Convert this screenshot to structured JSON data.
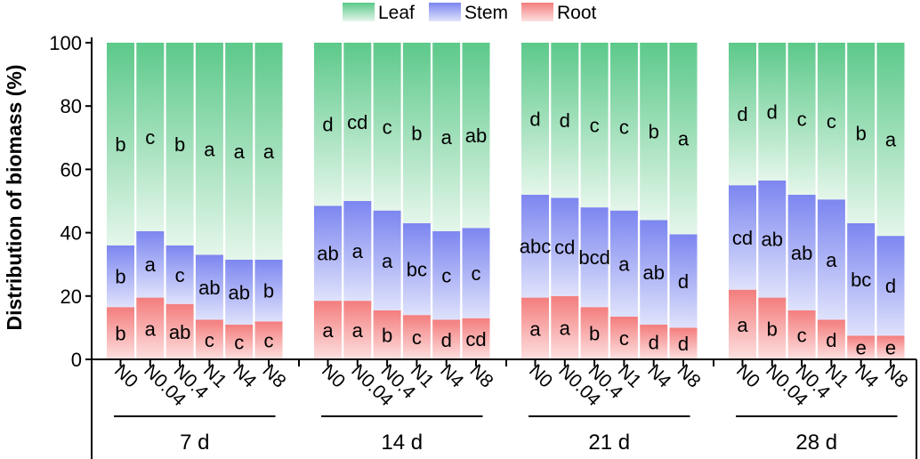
{
  "chart_data": {
    "type": "bar",
    "stacked": true,
    "ylabel": "Distribution of biomass (%)",
    "ylim": [
      0,
      100
    ],
    "yticks": [
      "0",
      "20",
      "40",
      "60",
      "80",
      "100"
    ],
    "legend_position": "top-center",
    "series": [
      {
        "name": "Leaf",
        "color": "#5cc98a",
        "color_light": "#e4f6ea"
      },
      {
        "name": "Stem",
        "color": "#7c86f0",
        "color_light": "#dfe2fb"
      },
      {
        "name": "Root",
        "color": "#f47d7d",
        "color_light": "#fde0e0"
      }
    ],
    "groups": [
      {
        "label": "7 d",
        "bars": [
          {
            "category": "N0",
            "root": 16.5,
            "stem": 19.5,
            "leaf": 64.0,
            "root_letter": "b",
            "stem_letter": "b",
            "leaf_letter": "b"
          },
          {
            "category": "N0.04",
            "root": 19.5,
            "stem": 21.0,
            "leaf": 59.5,
            "root_letter": "a",
            "stem_letter": "a",
            "leaf_letter": "c"
          },
          {
            "category": "N0.4",
            "root": 17.5,
            "stem": 18.5,
            "leaf": 64.0,
            "root_letter": "ab",
            "stem_letter": "c",
            "leaf_letter": "b"
          },
          {
            "category": "N1",
            "root": 12.5,
            "stem": 20.5,
            "leaf": 67.0,
            "root_letter": "c",
            "stem_letter": "ab",
            "leaf_letter": "a"
          },
          {
            "category": "N4",
            "root": 11.0,
            "stem": 20.5,
            "leaf": 68.5,
            "root_letter": "c",
            "stem_letter": "ab",
            "leaf_letter": "a"
          },
          {
            "category": "N8",
            "root": 12.0,
            "stem": 19.5,
            "leaf": 68.5,
            "root_letter": "c",
            "stem_letter": "b",
            "leaf_letter": "a"
          }
        ]
      },
      {
        "label": "14 d",
        "bars": [
          {
            "category": "N0",
            "root": 18.5,
            "stem": 30.0,
            "leaf": 51.5,
            "root_letter": "a",
            "stem_letter": "ab",
            "leaf_letter": "d"
          },
          {
            "category": "N0.04",
            "root": 18.5,
            "stem": 31.5,
            "leaf": 50.0,
            "root_letter": "a",
            "stem_letter": "a",
            "leaf_letter": "cd"
          },
          {
            "category": "N0.4",
            "root": 15.5,
            "stem": 31.5,
            "leaf": 53.0,
            "root_letter": "b",
            "stem_letter": "a",
            "leaf_letter": "c"
          },
          {
            "category": "N1",
            "root": 14.0,
            "stem": 29.0,
            "leaf": 57.0,
            "root_letter": "c",
            "stem_letter": "bc",
            "leaf_letter": "b"
          },
          {
            "category": "N4",
            "root": 12.5,
            "stem": 28.0,
            "leaf": 59.5,
            "root_letter": "d",
            "stem_letter": "c",
            "leaf_letter": "a"
          },
          {
            "category": "N8",
            "root": 13.0,
            "stem": 28.5,
            "leaf": 58.5,
            "root_letter": "cd",
            "stem_letter": "c",
            "leaf_letter": "ab"
          }
        ]
      },
      {
        "label": "21 d",
        "bars": [
          {
            "category": "N0",
            "root": 19.5,
            "stem": 32.5,
            "leaf": 48.0,
            "root_letter": "a",
            "stem_letter": "abc",
            "leaf_letter": "d"
          },
          {
            "category": "N0.04",
            "root": 20.0,
            "stem": 31.0,
            "leaf": 49.0,
            "root_letter": "a",
            "stem_letter": "cd",
            "leaf_letter": "d"
          },
          {
            "category": "N0.4",
            "root": 16.5,
            "stem": 31.5,
            "leaf": 52.0,
            "root_letter": "b",
            "stem_letter": "bcd",
            "leaf_letter": "c"
          },
          {
            "category": "N1",
            "root": 13.5,
            "stem": 33.5,
            "leaf": 53.0,
            "root_letter": "c",
            "stem_letter": "a",
            "leaf_letter": "c"
          },
          {
            "category": "N4",
            "root": 11.0,
            "stem": 33.0,
            "leaf": 56.0,
            "root_letter": "d",
            "stem_letter": "ab",
            "leaf_letter": "b"
          },
          {
            "category": "N8",
            "root": 10.0,
            "stem": 29.5,
            "leaf": 60.5,
            "root_letter": "d",
            "stem_letter": "d",
            "leaf_letter": "a"
          }
        ]
      },
      {
        "label": "28 d",
        "bars": [
          {
            "category": "N0",
            "root": 22.0,
            "stem": 33.0,
            "leaf": 45.0,
            "root_letter": "a",
            "stem_letter": "cd",
            "leaf_letter": "d"
          },
          {
            "category": "N0.04",
            "root": 19.5,
            "stem": 37.0,
            "leaf": 43.5,
            "root_letter": "b",
            "stem_letter": "ab",
            "leaf_letter": "d"
          },
          {
            "category": "N0.4",
            "root": 15.5,
            "stem": 36.5,
            "leaf": 48.0,
            "root_letter": "c",
            "stem_letter": "ab",
            "leaf_letter": "c"
          },
          {
            "category": "N1",
            "root": 12.5,
            "stem": 38.0,
            "leaf": 49.5,
            "root_letter": "d",
            "stem_letter": "a",
            "leaf_letter": "c"
          },
          {
            "category": "N4",
            "root": 7.5,
            "stem": 35.5,
            "leaf": 57.0,
            "root_letter": "e",
            "stem_letter": "bc",
            "leaf_letter": "b"
          },
          {
            "category": "N8",
            "root": 7.5,
            "stem": 31.5,
            "leaf": 61.0,
            "root_letter": "e",
            "stem_letter": "d",
            "leaf_letter": "a"
          }
        ]
      }
    ]
  }
}
